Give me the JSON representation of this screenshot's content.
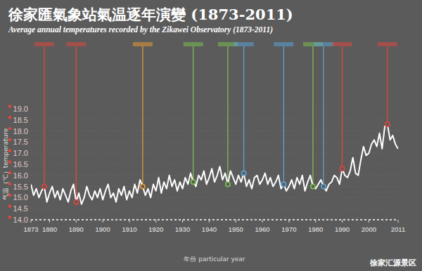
{
  "chart_data": {
    "type": "line",
    "title": "徐家匯氣象站氣温逐年演變 (1873-2011)",
    "subtitle": "Average annual temperatures recorded by the Zikawei Observatory (1873-2011)",
    "x_label": "年份 particular year",
    "y_label": "气温（℃）temperature",
    "watermark": "徐家汇源景区",
    "x": [
      1873,
      1874,
      1875,
      1876,
      1877,
      1878,
      1879,
      1880,
      1881,
      1882,
      1883,
      1884,
      1885,
      1886,
      1887,
      1888,
      1889,
      1890,
      1891,
      1892,
      1893,
      1894,
      1895,
      1896,
      1897,
      1898,
      1899,
      1900,
      1901,
      1902,
      1903,
      1904,
      1905,
      1906,
      1907,
      1908,
      1909,
      1910,
      1911,
      1912,
      1913,
      1914,
      1915,
      1916,
      1917,
      1918,
      1919,
      1920,
      1921,
      1922,
      1923,
      1924,
      1925,
      1926,
      1927,
      1928,
      1929,
      1930,
      1931,
      1932,
      1933,
      1934,
      1935,
      1936,
      1937,
      1938,
      1939,
      1940,
      1941,
      1942,
      1943,
      1944,
      1945,
      1946,
      1947,
      1948,
      1949,
      1950,
      1951,
      1952,
      1953,
      1954,
      1955,
      1956,
      1957,
      1958,
      1959,
      1960,
      1961,
      1962,
      1963,
      1964,
      1965,
      1966,
      1967,
      1968,
      1969,
      1970,
      1971,
      1972,
      1973,
      1974,
      1975,
      1976,
      1977,
      1978,
      1979,
      1980,
      1981,
      1982,
      1983,
      1984,
      1985,
      1986,
      1987,
      1988,
      1989,
      1990,
      1991,
      1992,
      1993,
      1994,
      1995,
      1996,
      1997,
      1998,
      1999,
      2000,
      2001,
      2002,
      2003,
      2004,
      2005,
      2006,
      2007,
      2008,
      2009,
      2010,
      2011
    ],
    "series": [
      {
        "name": "temperature",
        "color": "#ffffff",
        "values": [
          15.6,
          15.1,
          15.4,
          15.0,
          15.3,
          15.5,
          14.8,
          15.2,
          15.5,
          15.0,
          15.3,
          14.9,
          15.4,
          15.1,
          14.8,
          15.3,
          15.6,
          14.8,
          15.2,
          14.7,
          15.0,
          15.5,
          15.1,
          14.9,
          15.3,
          15.0,
          15.4,
          14.9,
          15.3,
          15.6,
          15.0,
          15.2,
          14.8,
          15.4,
          15.1,
          15.5,
          14.9,
          15.3,
          15.0,
          15.6,
          15.2,
          15.8,
          15.5,
          15.1,
          15.4,
          15.0,
          15.6,
          15.3,
          15.9,
          15.2,
          15.7,
          15.4,
          16.0,
          15.5,
          15.8,
          15.3,
          15.7,
          15.4,
          15.9,
          15.6,
          16.1,
          15.7,
          15.5,
          16.0,
          15.8,
          16.2,
          15.6,
          15.9,
          16.3,
          15.7,
          16.0,
          16.4,
          15.8,
          16.1,
          15.6,
          16.2,
          15.9,
          15.6,
          16.0,
          15.7,
          16.1,
          15.5,
          15.8,
          15.4,
          15.9,
          16.0,
          15.6,
          15.8,
          16.1,
          15.6,
          15.9,
          15.5,
          15.7,
          16.0,
          15.4,
          15.6,
          15.3,
          15.5,
          15.8,
          15.4,
          15.9,
          15.6,
          16.0,
          15.3,
          15.7,
          16.0,
          15.5,
          15.4,
          15.6,
          15.8,
          15.5,
          15.3,
          15.6,
          15.7,
          16.0,
          15.9,
          15.6,
          16.3,
          16.0,
          15.9,
          16.2,
          16.8,
          16.1,
          16.0,
          16.7,
          17.3,
          16.9,
          17.0,
          17.4,
          17.6,
          17.3,
          17.9,
          17.2,
          18.2,
          18.3,
          17.6,
          17.8,
          17.4,
          17.2
        ]
      }
    ],
    "events": [
      {
        "x": 1878,
        "color": "#e8453c"
      },
      {
        "x": 1890,
        "color": "#e8453c"
      },
      {
        "x": 1915,
        "color": "#f0a030"
      },
      {
        "x": 1934,
        "color": "#7ec850"
      },
      {
        "x": 1947,
        "color": "#7ec850"
      },
      {
        "x": 1953,
        "color": "#5aa8e0"
      },
      {
        "x": 1968,
        "color": "#5aa8e0"
      },
      {
        "x": 1979,
        "color": "#7ec850"
      },
      {
        "x": 1983,
        "color": "#5aa8e0"
      },
      {
        "x": 1990,
        "color": "#e8453c"
      },
      {
        "x": 2007,
        "color": "#e8453c"
      }
    ],
    "xlim": [
      1873,
      2011
    ],
    "xticks": [
      1873,
      1880,
      1890,
      1900,
      1910,
      1920,
      1930,
      1940,
      1950,
      1960,
      1970,
      1980,
      1990,
      2000,
      2011
    ],
    "ylim": [
      14,
      19
    ],
    "yticks": [
      {
        "value": 14,
        "label": "14.0"
      },
      {
        "value": 14.5,
        "label": "14.5"
      },
      {
        "value": 15,
        "label": "15.0"
      },
      {
        "value": 15.5,
        "label": "15.5"
      },
      {
        "value": 16,
        "label": "16.0"
      },
      {
        "value": 16.5,
        "label": "16.5"
      },
      {
        "value": 17,
        "label": "17.0"
      },
      {
        "value": 17.5,
        "label": "17.5"
      },
      {
        "value": 18,
        "label": "18.0"
      },
      {
        "value": 18.5,
        "label": "18.5"
      },
      {
        "value": 19,
        "label": "19.0"
      }
    ],
    "grid": true
  }
}
